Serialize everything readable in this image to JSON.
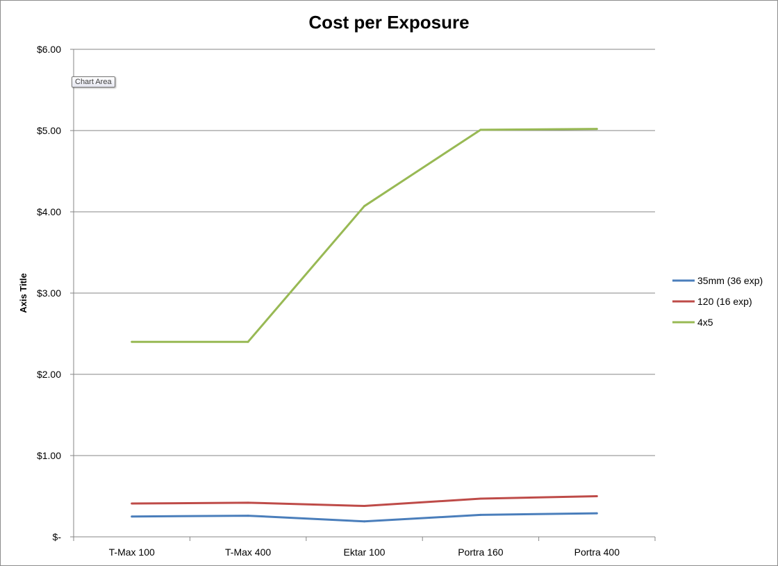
{
  "tooltip": "Chart Area",
  "chart_data": {
    "type": "line",
    "title": "Cost per Exposure",
    "xlabel": "",
    "ylabel": "Axis Title",
    "categories": [
      "T-Max 100",
      "T-Max 400",
      "Ektar 100",
      "Portra 160",
      "Portra 400"
    ],
    "y_ticks": [
      0,
      1,
      2,
      3,
      4,
      5,
      6
    ],
    "y_tick_labels": [
      "$-",
      "$1.00",
      "$2.00",
      "$3.00",
      "$4.00",
      "$5.00",
      "$6.00"
    ],
    "ylim": [
      0,
      6
    ],
    "grid": true,
    "legend_position": "right",
    "series": [
      {
        "name": "35mm (36 exp)",
        "color": "#4a7ebb",
        "values": [
          0.25,
          0.26,
          0.19,
          0.27,
          0.29
        ]
      },
      {
        "name": "120 (16 exp)",
        "color": "#be4b48",
        "values": [
          0.41,
          0.42,
          0.38,
          0.47,
          0.5
        ]
      },
      {
        "name": "4x5",
        "color": "#98b954",
        "values": [
          2.4,
          2.4,
          4.07,
          5.01,
          5.02
        ]
      }
    ]
  }
}
